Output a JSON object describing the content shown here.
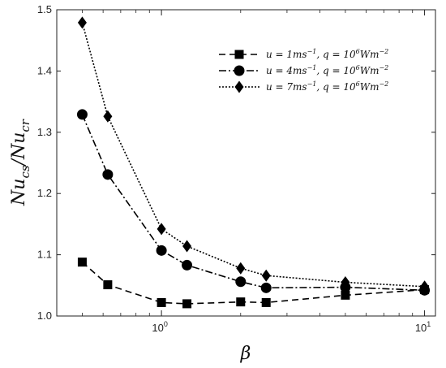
{
  "chart_data": {
    "type": "line",
    "xscale": "log",
    "x": [
      0.5,
      0.625,
      1,
      1.25,
      2,
      2.5,
      5,
      10
    ],
    "xlim": [
      0.4,
      11
    ],
    "ylim": [
      1.0,
      1.5
    ],
    "xticks": [
      {
        "value": 1,
        "base": "10",
        "exp": "0"
      },
      {
        "value": 10,
        "base": "10",
        "exp": "1"
      }
    ],
    "yticks": [
      "1.0",
      "1.1",
      "1.2",
      "1.3",
      "1.4",
      "1.5"
    ],
    "xlabel": "β",
    "ylabel": {
      "main1": "Nu",
      "sub1": "cs",
      "sep": "/",
      "main2": "Nu",
      "sub2": "cr"
    },
    "grid": false,
    "legend_position": "top-right",
    "series": [
      {
        "name": {
          "prefix": "u = 1ms",
          "uexp": "−1",
          "mid": ", q = 10",
          "qexp": "6",
          "suffix": "Wm",
          "wexp": "−2"
        },
        "marker": "square",
        "linestyle": "dashed",
        "values": [
          1.088,
          1.051,
          1.022,
          1.02,
          1.023,
          1.022,
          1.034,
          1.043
        ]
      },
      {
        "name": {
          "prefix": "u = 4ms",
          "uexp": "−1",
          "mid": ", q = 10",
          "qexp": "6",
          "suffix": "Wm",
          "wexp": "−2"
        },
        "marker": "circle",
        "linestyle": "dashdot",
        "values": [
          1.329,
          1.231,
          1.107,
          1.083,
          1.056,
          1.046,
          1.047,
          1.042
        ]
      },
      {
        "name": {
          "prefix": "u = 7ms",
          "uexp": "−1",
          "mid": ", q = 10",
          "qexp": "6",
          "suffix": "Wm",
          "wexp": "−2"
        },
        "marker": "diamond",
        "linestyle": "dotted",
        "values": [
          1.479,
          1.326,
          1.142,
          1.114,
          1.078,
          1.066,
          1.055,
          1.048
        ]
      }
    ]
  }
}
